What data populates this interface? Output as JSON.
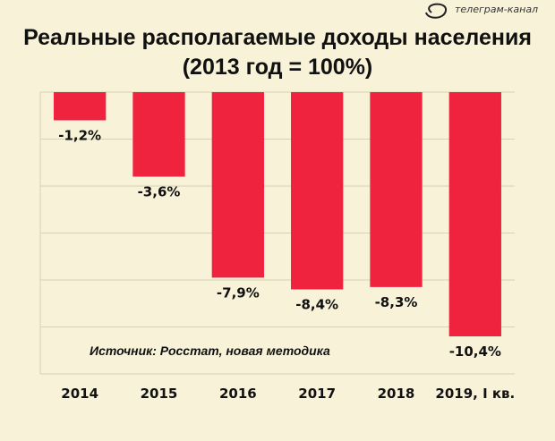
{
  "logo": {
    "text": "телеграм-канал"
  },
  "chart_data": {
    "type": "bar",
    "title": "Реальные располагаемые доходы населения",
    "subtitle": "(2013 год = 100%)",
    "categories": [
      "2014",
      "2015",
      "2016",
      "2017",
      "2018",
      "2019, I кв."
    ],
    "values": [
      -1.2,
      -3.6,
      -7.9,
      -8.4,
      -8.3,
      -10.4
    ],
    "value_labels": [
      "-1,2%",
      "-3,6%",
      "-7,9%",
      "-8,4%",
      "-8,3%",
      "-10,4%"
    ],
    "annotation": "Источник: Росстат, новая методика",
    "ylim": [
      -12,
      0
    ],
    "grid": true,
    "colors": {
      "bar": "#f0233f",
      "background": "#f7f2d8"
    }
  }
}
